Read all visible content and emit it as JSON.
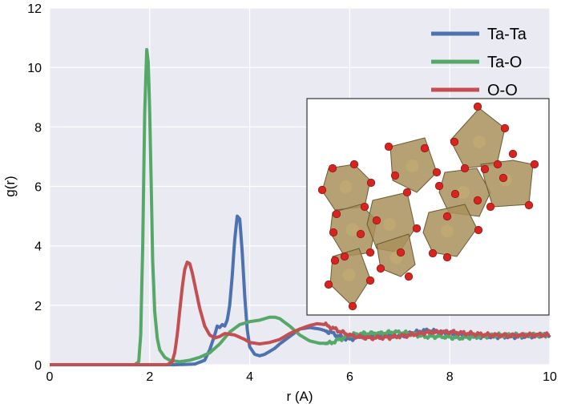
{
  "chart_data": {
    "type": "line",
    "xlabel": "r (A)",
    "ylabel": "g(r)",
    "xlim": [
      0,
      10
    ],
    "ylim": [
      0,
      12
    ],
    "xticks": [
      0,
      2,
      4,
      6,
      8,
      10
    ],
    "yticks": [
      0,
      2,
      4,
      6,
      8,
      10,
      12
    ],
    "grid": true,
    "legend_position": "top-right",
    "series": [
      {
        "name": "Ta-Ta",
        "color": "#4c72b0",
        "x": [
          0,
          2.5,
          2.9,
          3.1,
          3.2,
          3.3,
          3.35,
          3.4,
          3.45,
          3.5,
          3.55,
          3.6,
          3.65,
          3.7,
          3.75,
          3.8,
          3.85,
          3.9,
          3.95,
          4.0,
          4.1,
          4.2,
          4.3,
          4.4,
          4.5,
          4.6,
          4.8,
          5.0,
          5.2,
          5.4,
          5.6,
          5.8,
          6.0,
          6.2,
          6.5,
          6.8,
          7.0,
          7.2,
          7.5,
          7.8,
          8.0,
          8.3,
          8.6,
          9.0,
          9.5,
          10.0
        ],
        "y": [
          0,
          0,
          0.02,
          0.15,
          0.5,
          1.0,
          1.3,
          1.25,
          1.35,
          1.3,
          1.5,
          2.0,
          3.0,
          4.2,
          5.0,
          4.9,
          3.8,
          2.3,
          1.2,
          0.6,
          0.35,
          0.3,
          0.35,
          0.45,
          0.55,
          0.7,
          0.95,
          1.2,
          1.25,
          1.2,
          1.1,
          0.95,
          0.85,
          0.95,
          1.0,
          1.0,
          0.95,
          1.05,
          1.15,
          1.1,
          1.05,
          1.0,
          0.95,
          0.95,
          0.95,
          1.0
        ]
      },
      {
        "name": "Ta-O",
        "color": "#55a868",
        "x": [
          0,
          1.7,
          1.78,
          1.82,
          1.86,
          1.9,
          1.94,
          1.97,
          2.0,
          2.03,
          2.06,
          2.1,
          2.15,
          2.2,
          2.3,
          2.4,
          2.6,
          2.8,
          3.0,
          3.2,
          3.4,
          3.6,
          3.8,
          4.0,
          4.2,
          4.4,
          4.5,
          4.6,
          4.8,
          5.0,
          5.2,
          5.4,
          5.6,
          5.8,
          6.0,
          6.3,
          6.6,
          6.9,
          7.2,
          7.5,
          7.8,
          8.2,
          8.6,
          9.0,
          9.5,
          10.0
        ],
        "y": [
          0,
          0,
          0.1,
          1.0,
          4.0,
          8.5,
          10.6,
          10.2,
          8.5,
          6.0,
          3.5,
          1.8,
          0.9,
          0.5,
          0.25,
          0.15,
          0.1,
          0.15,
          0.25,
          0.4,
          0.7,
          1.1,
          1.35,
          1.45,
          1.5,
          1.6,
          1.6,
          1.55,
          1.3,
          1.0,
          0.8,
          0.72,
          0.72,
          0.85,
          1.0,
          1.05,
          1.05,
          1.1,
          1.05,
          0.95,
          0.95,
          0.9,
          0.95,
          1.0,
          1.0,
          1.0
        ]
      },
      {
        "name": "O-O",
        "color": "#c44e52",
        "x": [
          0,
          2.35,
          2.45,
          2.5,
          2.55,
          2.6,
          2.65,
          2.7,
          2.75,
          2.8,
          2.85,
          2.9,
          2.95,
          3.0,
          3.1,
          3.2,
          3.3,
          3.4,
          3.5,
          3.7,
          3.9,
          4.0,
          4.2,
          4.4,
          4.6,
          4.8,
          5.0,
          5.2,
          5.35,
          5.5,
          5.7,
          5.9,
          6.1,
          6.4,
          6.8,
          7.2,
          7.6,
          8.0,
          8.4,
          8.8,
          9.2,
          9.6,
          10.0
        ],
        "y": [
          0,
          0,
          0.1,
          0.4,
          1.0,
          1.8,
          2.6,
          3.2,
          3.45,
          3.4,
          3.1,
          2.7,
          2.3,
          1.9,
          1.3,
          1.0,
          0.9,
          0.95,
          1.05,
          1.0,
          0.85,
          0.75,
          0.7,
          0.75,
          0.85,
          1.05,
          1.2,
          1.32,
          1.38,
          1.35,
          1.2,
          1.05,
          0.95,
          0.9,
          0.92,
          1.0,
          1.1,
          1.1,
          1.05,
          1.0,
          0.98,
          1.0,
          1.0
        ]
      }
    ]
  },
  "inset": {
    "atom_color": "#d9231f",
    "polyhedron_color": "#a8905a"
  }
}
